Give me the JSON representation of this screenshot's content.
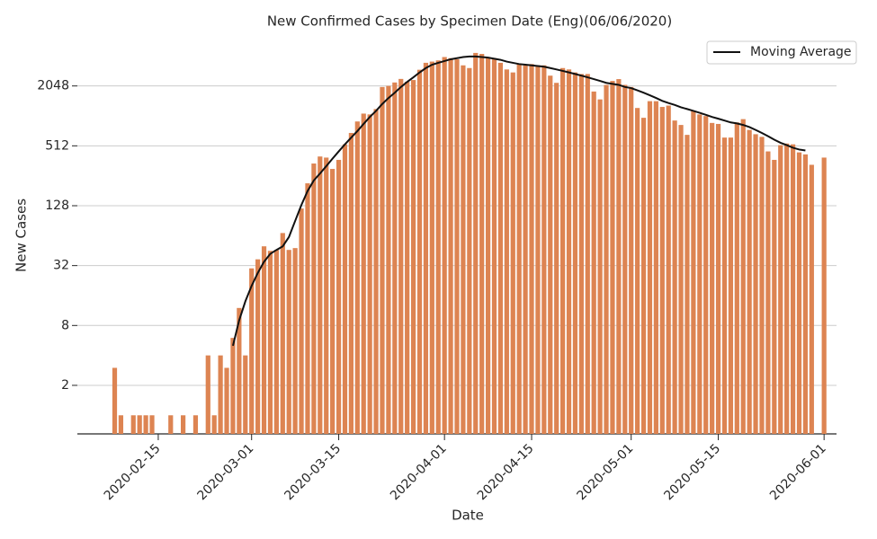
{
  "chart_data": {
    "type": "bar",
    "title": "New Confirmed Cases by Specimen Date (Eng)(06/06/2020)",
    "xlabel": "Date",
    "ylabel": "New Cases",
    "x": [
      "2020-02-08",
      "2020-02-09",
      "2020-02-10",
      "2020-02-11",
      "2020-02-12",
      "2020-02-13",
      "2020-02-14",
      "2020-02-15",
      "2020-02-16",
      "2020-02-17",
      "2020-02-18",
      "2020-02-19",
      "2020-02-20",
      "2020-02-21",
      "2020-02-22",
      "2020-02-23",
      "2020-02-24",
      "2020-02-25",
      "2020-02-26",
      "2020-02-27",
      "2020-02-28",
      "2020-02-29",
      "2020-03-01",
      "2020-03-02",
      "2020-03-03",
      "2020-03-04",
      "2020-03-05",
      "2020-03-06",
      "2020-03-07",
      "2020-03-08",
      "2020-03-09",
      "2020-03-10",
      "2020-03-11",
      "2020-03-12",
      "2020-03-13",
      "2020-03-14",
      "2020-03-15",
      "2020-03-16",
      "2020-03-17",
      "2020-03-18",
      "2020-03-19",
      "2020-03-20",
      "2020-03-21",
      "2020-03-22",
      "2020-03-23",
      "2020-03-24",
      "2020-03-25",
      "2020-03-26",
      "2020-03-27",
      "2020-03-28",
      "2020-03-29",
      "2020-03-30",
      "2020-03-31",
      "2020-04-01",
      "2020-04-02",
      "2020-04-03",
      "2020-04-04",
      "2020-04-05",
      "2020-04-06",
      "2020-04-07",
      "2020-04-08",
      "2020-04-09",
      "2020-04-10",
      "2020-04-11",
      "2020-04-12",
      "2020-04-13",
      "2020-04-14",
      "2020-04-15",
      "2020-04-16",
      "2020-04-17",
      "2020-04-18",
      "2020-04-19",
      "2020-04-20",
      "2020-04-21",
      "2020-04-22",
      "2020-04-23",
      "2020-04-24",
      "2020-04-25",
      "2020-04-26",
      "2020-04-27",
      "2020-04-28",
      "2020-04-29",
      "2020-04-30",
      "2020-05-01",
      "2020-05-02",
      "2020-05-03",
      "2020-05-04",
      "2020-05-05",
      "2020-05-06",
      "2020-05-07",
      "2020-05-08",
      "2020-05-09",
      "2020-05-10",
      "2020-05-11",
      "2020-05-12",
      "2020-05-13",
      "2020-05-14",
      "2020-05-15",
      "2020-05-16",
      "2020-05-17",
      "2020-05-18",
      "2020-05-19",
      "2020-05-20",
      "2020-05-21",
      "2020-05-22",
      "2020-05-23",
      "2020-05-24",
      "2020-05-25",
      "2020-05-26",
      "2020-05-27",
      "2020-05-28",
      "2020-05-29",
      "2020-05-30",
      "2020-05-31",
      "2020-06-01"
    ],
    "values": [
      3,
      1,
      null,
      1,
      1,
      1,
      1,
      null,
      null,
      1,
      null,
      1,
      null,
      1,
      null,
      4,
      1,
      4,
      3,
      6,
      12,
      4,
      30,
      37,
      50,
      45,
      46,
      68,
      46,
      48,
      120,
      215,
      340,
      400,
      390,
      300,
      370,
      530,
      690,
      900,
      1080,
      1060,
      1200,
      2000,
      2050,
      2220,
      2410,
      2260,
      2350,
      2980,
      3500,
      3600,
      3700,
      4000,
      3900,
      3800,
      3300,
      3100,
      4400,
      4300,
      4000,
      3900,
      3500,
      3000,
      2800,
      3400,
      3300,
      3400,
      3300,
      3300,
      2600,
      2200,
      3100,
      3000,
      2800,
      2700,
      2700,
      1800,
      1500,
      2100,
      2300,
      2400,
      2100,
      2000,
      1230,
      980,
      1440,
      1440,
      1260,
      1300,
      920,
      830,
      660,
      1150,
      1060,
      1020,
      870,
      850,
      620,
      620,
      880,
      950,
      740,
      670,
      630,
      450,
      370,
      520,
      540,
      530,
      440,
      420,
      330,
      null,
      390
    ],
    "color": "#dd8452",
    "series": [
      {
        "name": "Moving Average",
        "type": "line",
        "color": "#111111",
        "values": [
          null,
          null,
          null,
          null,
          null,
          null,
          null,
          null,
          null,
          null,
          null,
          null,
          null,
          null,
          null,
          null,
          null,
          null,
          null,
          5,
          9,
          14,
          20,
          27,
          35,
          42,
          46,
          50,
          62,
          90,
          130,
          180,
          230,
          270,
          320,
          380,
          450,
          530,
          620,
          720,
          850,
          1000,
          1150,
          1350,
          1550,
          1750,
          2000,
          2250,
          2500,
          2800,
          3100,
          3350,
          3500,
          3650,
          3800,
          3900,
          4000,
          4050,
          4050,
          4000,
          3950,
          3850,
          3750,
          3600,
          3500,
          3400,
          3350,
          3300,
          3250,
          3200,
          3100,
          3000,
          2900,
          2800,
          2700,
          2600,
          2500,
          2400,
          2300,
          2200,
          2150,
          2100,
          2000,
          1950,
          1850,
          1750,
          1650,
          1550,
          1450,
          1380,
          1320,
          1250,
          1200,
          1150,
          1100,
          1050,
          1000,
          960,
          920,
          880,
          860,
          830,
          790,
          740,
          690,
          640,
          590,
          550,
          520,
          490,
          470,
          460,
          null,
          null,
          null
        ]
      }
    ],
    "yscale": "log2",
    "ylim": [
      0.65,
      6000
    ],
    "yticks": [
      2,
      8,
      32,
      128,
      512,
      2048
    ],
    "xlim": [
      "2020-02-02",
      "2020-06-03"
    ],
    "xticks": [
      "2020-02-15",
      "2020-03-01",
      "2020-03-15",
      "2020-04-01",
      "2020-04-15",
      "2020-05-01",
      "2020-05-15",
      "2020-06-01"
    ],
    "grid": true,
    "legend": "upper right"
  }
}
